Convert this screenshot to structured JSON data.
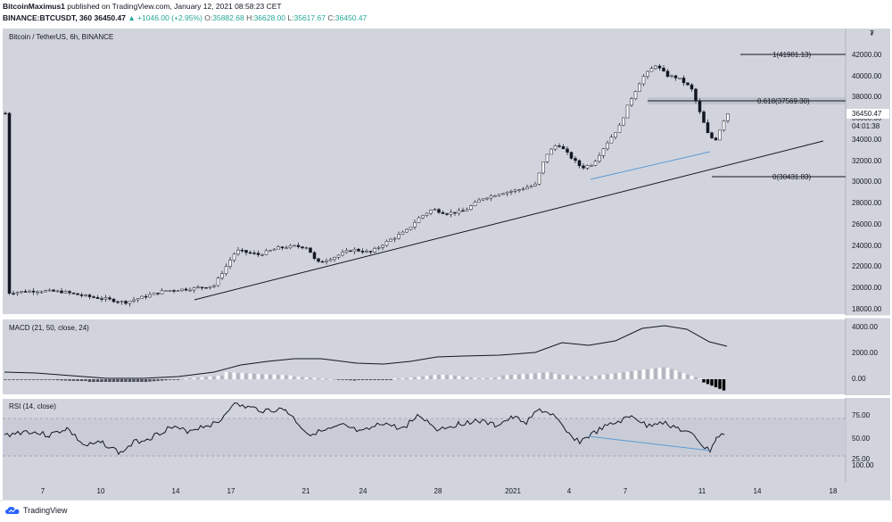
{
  "header": {
    "author": "BitcoinMaximus1",
    "published_text": " published on TradingView.com, January 12, 2021 08:58:23 CET",
    "symbol": "BINANCE:BTCUSDT, 360",
    "last": "36450.47",
    "change": "▲ +1046.00 (+2.95%)",
    "o_label": "O:",
    "o": "35882.68",
    "h_label": "H:",
    "h": "36628.00",
    "l_label": "L:",
    "l": "35617.67",
    "c_label": "C:",
    "c": "36450.47"
  },
  "main_pane": {
    "title": "Bitcoin / TetherUS, 6h, BINANCE",
    "axis_badge": "₮",
    "y_ticks": [
      "42000.00",
      "40000.00",
      "38000.00",
      "36000.00",
      "34000.00",
      "32000.00",
      "30000.00",
      "28000.00",
      "26000.00",
      "24000.00",
      "22000.00",
      "20000.00",
      "18000.00"
    ],
    "price_label": "36450.47",
    "countdown_label": "04:01:38",
    "fib_levels": [
      {
        "label": "1(41981.13)",
        "value": 41981.13
      },
      {
        "label": "0.618(37569.30)",
        "value": 37569.3
      },
      {
        "label": "0(30431.83)",
        "value": 30431.83
      }
    ]
  },
  "macd_pane": {
    "title": "MACD (21, 50, close, 24)",
    "y_ticks": [
      "4000.00",
      "2000.00",
      "0.00"
    ]
  },
  "rsi_pane": {
    "title": "RSI (14, close)",
    "y_ticks": [
      "75.00",
      "50.00",
      "25.00",
      "100.00"
    ]
  },
  "x_axis": {
    "ticks": [
      "7",
      "10",
      "14",
      "17",
      "21",
      "24",
      "28",
      "2021",
      "4",
      "7",
      "11",
      "14",
      "18"
    ]
  },
  "footer": {
    "brand": "TradingView"
  },
  "colors": {
    "pane_bg": "#d1d4dc",
    "line": "#131722",
    "trend_blue": "#5b9bd5",
    "macd_pos": "#ffffff",
    "macd_neg": "#000000"
  }
}
